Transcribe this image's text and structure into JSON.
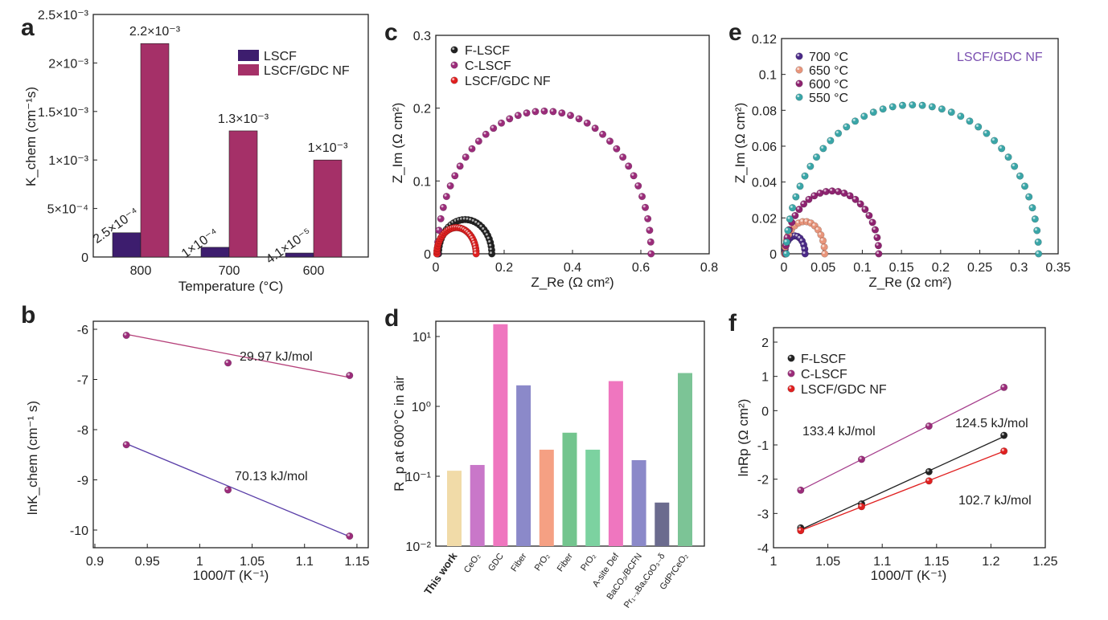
{
  "colors": {
    "lscf": "#3d1d6e",
    "nf": "#a53068",
    "black": "#222222",
    "purple": "#9b2c7a",
    "red": "#e02020",
    "c700": "#4b2a88",
    "c650": "#e8957b",
    "c600": "#8e2370",
    "c550": "#3aa6a8",
    "title_e": "#7a4fb0",
    "fit_top": "#b54079",
    "fit_bot": "#5a3ea8"
  },
  "chart_data": [
    {
      "panel": "a",
      "type": "bar",
      "ylabel": "K_chem (cm⁻¹s)",
      "xlabel": "Temperature (°C)",
      "categories": [
        "800",
        "700",
        "600"
      ],
      "series": [
        {
          "name": "LSCF",
          "values": [
            0.00025,
            0.0001,
            4.1e-05
          ],
          "labels": [
            "2.5×10⁻⁴",
            "1×10⁻⁴",
            "4.1×10⁻⁵"
          ]
        },
        {
          "name": "LSCF/GDC NF",
          "values": [
            0.0022,
            0.0013,
            0.001
          ],
          "labels": [
            "2.2×10⁻³",
            "1.3×10⁻³",
            "1×10⁻³"
          ]
        }
      ],
      "ylim": [
        0,
        0.0025
      ],
      "yticks": [
        {
          "v": 0,
          "label": "0"
        },
        {
          "v": 0.0005,
          "label": "5×10⁻⁴"
        },
        {
          "v": 0.001,
          "label": "1×10⁻³"
        },
        {
          "v": 0.0015,
          "label": "1.5×10⁻³"
        },
        {
          "v": 0.002,
          "label": "2×10⁻³"
        },
        {
          "v": 0.0025,
          "label": "2.5×10⁻³"
        }
      ]
    },
    {
      "panel": "b",
      "type": "scatter",
      "xlabel": "1000/T (K⁻¹)",
      "ylabel": "lnK_chem (cm⁻¹ s)",
      "xlim": [
        0.9,
        1.17
      ],
      "ylim": [
        -10.4,
        -5.6
      ],
      "xticks": [
        0.9,
        0.95,
        1,
        1.05,
        1.1,
        1.15
      ],
      "yticks": [
        -10,
        -9,
        -8,
        -7,
        -6
      ],
      "series": [
        {
          "name": "LSCF/GDC NF",
          "x": [
            0.93,
            1.027,
            1.143
          ],
          "y": [
            -6.12,
            -6.67,
            -6.92
          ],
          "fit": [
            -6.1,
            -6.96
          ],
          "ea": "29.97 kJ/mol"
        },
        {
          "name": "LSCF",
          "x": [
            0.93,
            1.027,
            1.143
          ],
          "y": [
            -8.3,
            -9.2,
            -10.12
          ],
          "fit": [
            -8.28,
            -10.13
          ],
          "ea": "70.13 kJ/mol"
        }
      ]
    },
    {
      "panel": "c",
      "type": "scatter",
      "xlabel": "Z_Re (Ω cm²)",
      "ylabel": "Z_Im (Ω cm²)",
      "xlim": [
        0,
        0.8
      ],
      "ylim": [
        0,
        0.3
      ],
      "xticks": [
        0,
        0.2,
        0.4,
        0.6,
        0.8
      ],
      "yticks": [
        0,
        0.1,
        0.2,
        0.3
      ],
      "series": [
        {
          "name": "F-LSCF",
          "x0": 0.008,
          "x1": 0.164,
          "h": 0.047
        },
        {
          "name": "C-LSCF",
          "x0": 0.005,
          "x1": 0.63,
          "h": 0.196
        },
        {
          "name": "LSCF/GDC NF",
          "x0": 0.003,
          "x1": 0.118,
          "h": 0.036
        }
      ]
    },
    {
      "panel": "d",
      "type": "bar",
      "ylabel": "R_p at 600°C in air",
      "yscale": "log",
      "ylim": [
        0.01,
        20
      ],
      "yticks": [
        "10⁻²",
        "10⁻¹",
        "10⁰",
        "10¹"
      ],
      "categories": [
        "This work",
        "CeO₂",
        "GDC",
        "Fiber",
        "PrO₂",
        "Fiber",
        "PrO₂",
        "A-site Def",
        "BaCO₃/BCFN",
        "Pr₁₋ₓBaₓCoO₃₋δ",
        "GdPrCeO₂"
      ],
      "values": [
        0.12,
        0.145,
        15.0,
        2.0,
        0.24,
        0.42,
        0.24,
        2.3,
        0.17,
        0.042,
        3.0
      ]
    },
    {
      "panel": "e",
      "type": "scatter",
      "title": "LSCF/GDC NF",
      "xlabel": "Z_Re (Ω cm²)",
      "ylabel": "Z_Im (Ω cm²)",
      "xlim": [
        0,
        0.35
      ],
      "ylim": [
        0,
        0.12
      ],
      "xticks": [
        0,
        0.05,
        0.1,
        0.15,
        0.2,
        0.25,
        0.3,
        0.35
      ],
      "yticks": [
        0,
        0.02,
        0.04,
        0.06,
        0.08,
        0.1,
        0.12
      ],
      "series": [
        {
          "name": "700 °C",
          "x0": 0.001,
          "x1": 0.027,
          "h": 0.01
        },
        {
          "name": "650 °C",
          "x0": 0.001,
          "x1": 0.052,
          "h": 0.018
        },
        {
          "name": "600 °C",
          "x0": 0.002,
          "x1": 0.121,
          "h": 0.035
        },
        {
          "name": "550 °C",
          "x0": 0.003,
          "x1": 0.325,
          "h": 0.083
        }
      ]
    },
    {
      "panel": "f",
      "type": "scatter",
      "xlabel": "1000/T (K⁻¹)",
      "ylabel": "lnRp (Ω cm²)",
      "xlim": [
        1.0,
        1.25
      ],
      "ylim": [
        -4,
        2.4
      ],
      "xticks": [
        1,
        1.05,
        1.1,
        1.15,
        1.2,
        1.25
      ],
      "yticks": [
        -4,
        -3,
        -2,
        -1,
        0,
        1,
        2
      ],
      "series": [
        {
          "name": "F-LSCF",
          "x": [
            1.025,
            1.081,
            1.143,
            1.212
          ],
          "y": [
            -3.42,
            -2.72,
            -1.78,
            -0.72
          ],
          "ea": "124.5 kJ/mol"
        },
        {
          "name": "C-LSCF",
          "x": [
            1.025,
            1.081,
            1.143,
            1.212
          ],
          "y": [
            -2.32,
            -1.42,
            -0.45,
            0.68
          ],
          "ea": "133.4 kJ/mol"
        },
        {
          "name": "LSCF/GDC NF",
          "x": [
            1.025,
            1.081,
            1.143,
            1.212
          ],
          "y": [
            -3.5,
            -2.8,
            -2.05,
            -1.18
          ],
          "ea": "102.7 kJ/mol"
        }
      ]
    }
  ]
}
